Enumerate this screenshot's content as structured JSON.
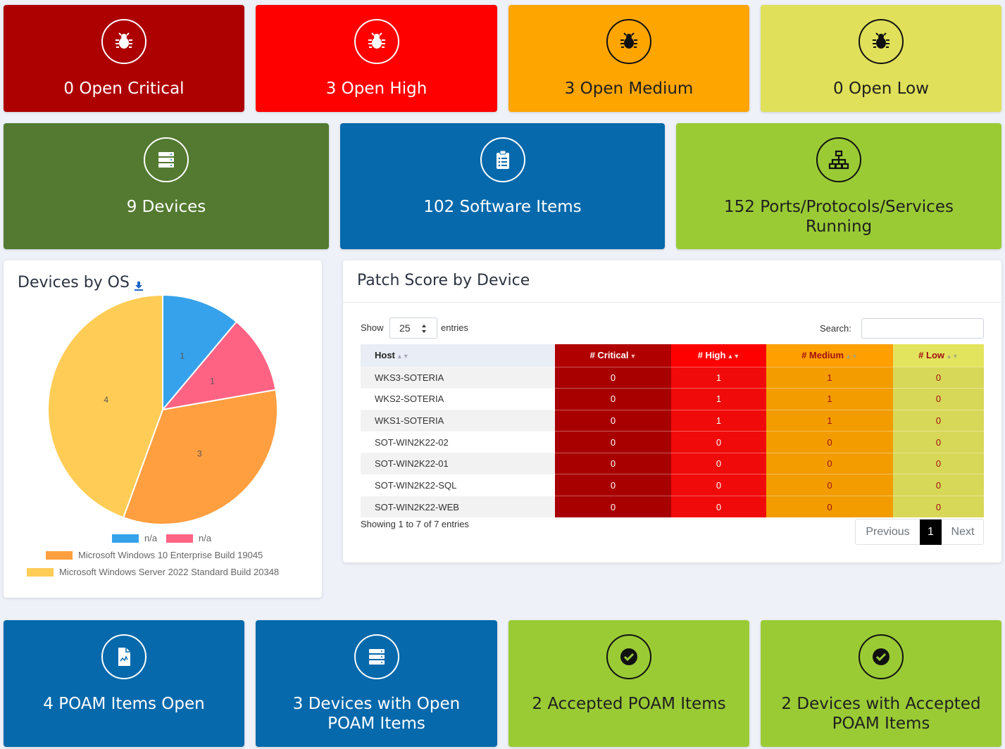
{
  "tiles_row1": [
    {
      "label": "0 Open Critical",
      "icon": "bug-icon",
      "bg": "#ad0000",
      "theme": "light"
    },
    {
      "label": "3 Open High",
      "icon": "bug-icon",
      "bg": "#ff0000",
      "theme": "light"
    },
    {
      "label": "3 Open Medium",
      "icon": "bug-icon",
      "bg": "#ffa500",
      "theme": "dark"
    },
    {
      "label": "0 Open Low",
      "icon": "bug-icon",
      "bg": "#e0e05a",
      "theme": "dark"
    }
  ],
  "tiles_row2": [
    {
      "label": "9 Devices",
      "icon": "server-icon",
      "bg": "#537a30",
      "theme": "light"
    },
    {
      "label": "102 Software Items",
      "icon": "clipboard-list-icon",
      "bg": "#0669ac",
      "theme": "light"
    },
    {
      "label": "152 Ports/Protocols/Services Running",
      "icon": "network-icon",
      "bg": "#9acb35",
      "theme": "dark"
    }
  ],
  "tiles_row3": [
    {
      "label": "4 POAM Items Open",
      "icon": "file-chart-icon",
      "bg": "#0669ac",
      "theme": "light"
    },
    {
      "label": "3 Devices with Open POAM Items",
      "icon": "server-icon",
      "bg": "#0669ac",
      "theme": "light"
    },
    {
      "label": "2 Accepted POAM Items",
      "icon": "check-circle-icon",
      "bg": "#9acb35",
      "theme": "dark"
    },
    {
      "label": "2 Devices with Accepted POAM Items",
      "icon": "check-circle-icon",
      "bg": "#9acb35",
      "theme": "dark"
    }
  ],
  "devices_by_os": {
    "title": "Devices by OS",
    "download_icon": "download-icon",
    "chart_data": {
      "type": "pie",
      "categories": [
        "n/a",
        "n/a",
        "Microsoft Windows 10 Enterprise Build 19045",
        "Microsoft Windows Server 2022 Standard Build 20348"
      ],
      "values": [
        1,
        1,
        3,
        4
      ],
      "colors": [
        "#36a2eb",
        "#ff6384",
        "#ff9f40",
        "#ffcd56"
      ],
      "legend": "bottom"
    }
  },
  "patch_table": {
    "title": "Patch Score by Device",
    "show_label": "Show",
    "entries_value": "25",
    "entries_label": "entries",
    "search_label": "Search:",
    "columns": [
      "Host",
      "# Critical",
      "# High",
      "# Medium",
      "# Low"
    ],
    "rows": [
      {
        "host": "WKS3-SOTERIA",
        "critical": "0",
        "high": "1",
        "medium": "1",
        "low": "0"
      },
      {
        "host": "WKS2-SOTERIA",
        "critical": "0",
        "high": "1",
        "medium": "1",
        "low": "0"
      },
      {
        "host": "WKS1-SOTERIA",
        "critical": "0",
        "high": "1",
        "medium": "1",
        "low": "0"
      },
      {
        "host": "SOT-WIN2K22-02",
        "critical": "0",
        "high": "0",
        "medium": "0",
        "low": "0"
      },
      {
        "host": "SOT-WIN2K22-01",
        "critical": "0",
        "high": "0",
        "medium": "0",
        "low": "0"
      },
      {
        "host": "SOT-WIN2K22-SQL",
        "critical": "0",
        "high": "0",
        "medium": "0",
        "low": "0"
      },
      {
        "host": "SOT-WIN2K22-WEB",
        "critical": "0",
        "high": "0",
        "medium": "0",
        "low": "0"
      }
    ],
    "info": "Showing 1 to 7 of 7 entries",
    "prev_label": "Previous",
    "page_label": "1",
    "next_label": "Next"
  }
}
